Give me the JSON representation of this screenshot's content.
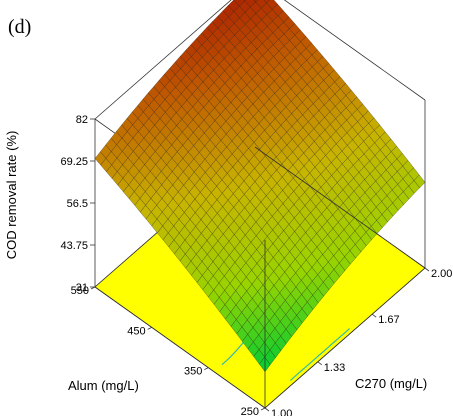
{
  "panel_label": "(d)",
  "chart_data": {
    "type": "surface3d",
    "title": "",
    "zlabel": "COD removal rate (%)",
    "xlabel": "C270 (mg/L)",
    "ylabel": "Alum (mg/L)",
    "x_ticks": [
      "1.00",
      "1.33",
      "1.67",
      "2.00"
    ],
    "y_ticks": [
      "250",
      "350",
      "450",
      "550"
    ],
    "z_ticks": [
      "31",
      "43.75",
      "56.5",
      "69.25",
      "82"
    ],
    "xlim": [
      1.0,
      2.0
    ],
    "ylim": [
      250,
      550
    ],
    "zlim": [
      31,
      82
    ],
    "corner_values": {
      "x1.00_y250": 42,
      "x2.00_y250": 57,
      "x1.00_y550": 70,
      "x2.00_y550": 82
    },
    "colormap": [
      "#00cc33",
      "#99d400",
      "#c8b400",
      "#c05a00",
      "#a00000"
    ],
    "floor_color": "#ffff00",
    "contour_color": "#33bbaa"
  }
}
